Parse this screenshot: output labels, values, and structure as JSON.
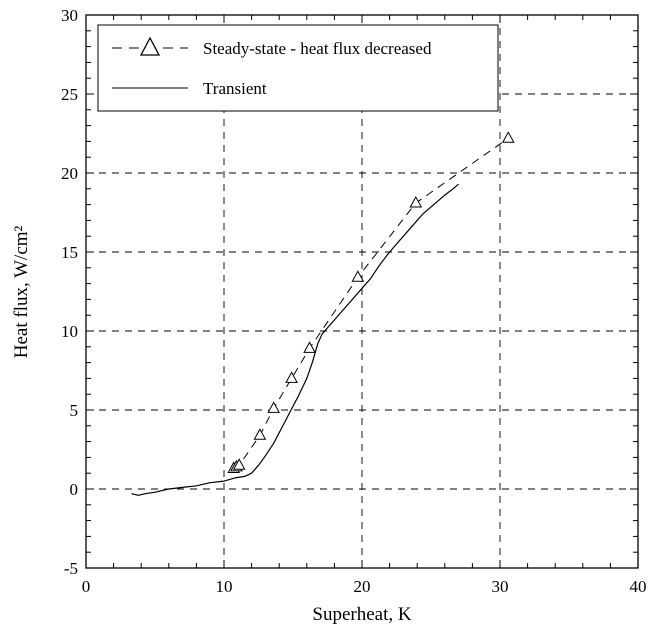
{
  "chart_data": {
    "type": "line",
    "title": "",
    "xlabel": "Superheat, K",
    "ylabel": "Heat flux, W/cm²",
    "xlim": [
      0,
      40
    ],
    "ylim": [
      -5,
      30
    ],
    "xticks": [
      "0",
      "10",
      "20",
      "30",
      "40"
    ],
    "yticks": [
      "-5",
      "0",
      "5",
      "10",
      "15",
      "20",
      "25",
      "30"
    ],
    "grid": "dashed, major ticks",
    "legend_position": "top-left",
    "series": [
      {
        "name": "Steady-state - heat flux decreased",
        "style": "dashed line with open triangle markers",
        "x": [
          10.7,
          10.9,
          11.1,
          12.6,
          13.6,
          14.9,
          16.2,
          19.7,
          23.9,
          30.6
        ],
        "y": [
          1.3,
          1.4,
          1.5,
          3.4,
          5.1,
          7.0,
          8.9,
          13.4,
          18.1,
          22.2
        ]
      },
      {
        "name": "Transient",
        "style": "solid thin line",
        "x": [
          3.3,
          3.8,
          4.3,
          5.0,
          6.0,
          7.0,
          8.0,
          9.0,
          10.0,
          10.8,
          11.5,
          12.0,
          12.5,
          13.0,
          13.6,
          14.2,
          14.8,
          15.4,
          16.0,
          16.4,
          16.8,
          17.1,
          17.4,
          17.8,
          18.5,
          19.2,
          20.0,
          20.6,
          21.3,
          22.0,
          22.8,
          23.6,
          24.4,
          25.2,
          26.0,
          26.6,
          27.0
        ],
        "y": [
          -0.3,
          -0.4,
          -0.3,
          -0.2,
          0.0,
          0.1,
          0.2,
          0.4,
          0.5,
          0.7,
          0.8,
          1.0,
          1.5,
          2.1,
          2.9,
          3.9,
          4.9,
          5.9,
          7.0,
          8.0,
          9.2,
          9.8,
          10.1,
          10.5,
          11.2,
          11.9,
          12.7,
          13.3,
          14.2,
          15.0,
          15.8,
          16.6,
          17.4,
          18.0,
          18.6,
          19.0,
          19.3
        ]
      }
    ]
  }
}
